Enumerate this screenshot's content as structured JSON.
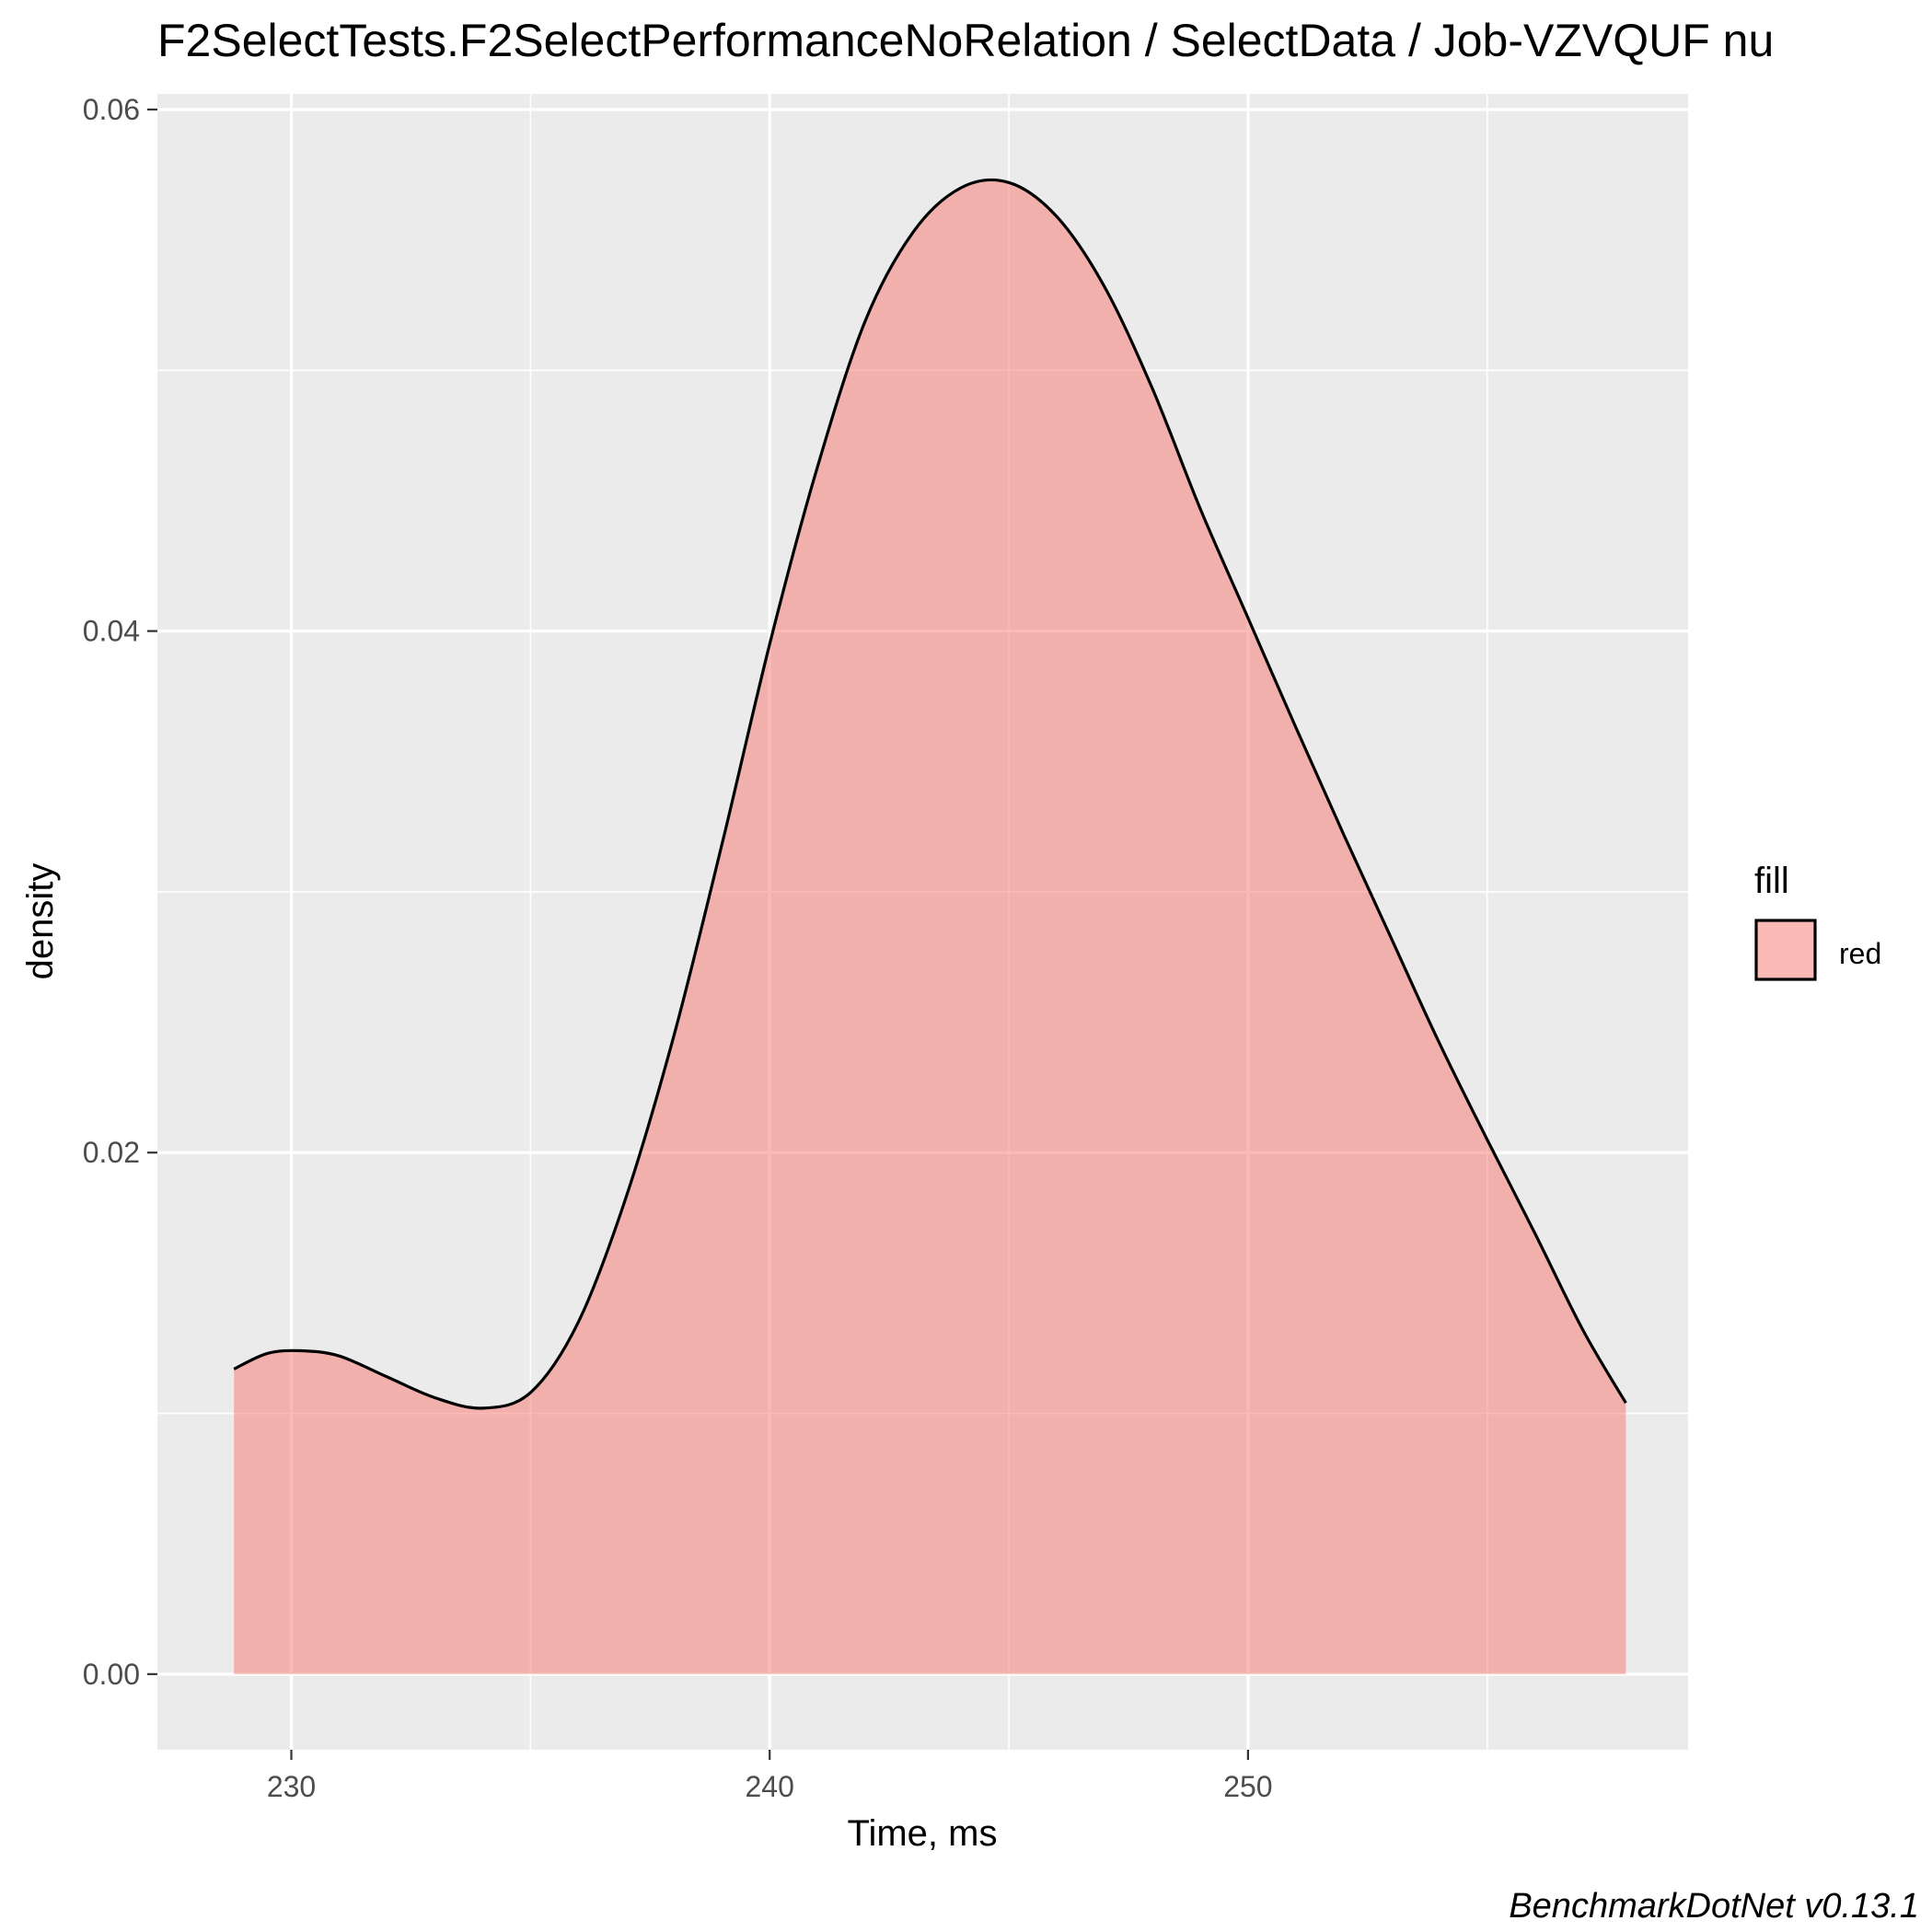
{
  "chart_data": {
    "type": "area",
    "title": "F2SelectTests.F2SelectPerformanceNoRelation / SelectData / Job-VZVQUF nu",
    "xlabel": "Time, ms",
    "ylabel": "density",
    "caption": "BenchmarkDotNet v0.13.1",
    "xlim": [
      227.2,
      259.2
    ],
    "ylim": [
      -0.0029,
      0.0606
    ],
    "x_ticks": [
      230,
      240,
      250
    ],
    "x_tick_labels": [
      "230",
      "240",
      "250"
    ],
    "y_ticks": [
      0.0,
      0.02,
      0.04,
      0.06
    ],
    "y_tick_labels": [
      "0.00",
      "0.02",
      "0.04",
      "0.06"
    ],
    "grid": true,
    "legend": {
      "title": "fill",
      "position": "right",
      "entries": [
        {
          "label": "red",
          "color": "#F8766D"
        }
      ]
    },
    "series": [
      {
        "x": [
          228.8,
          229.5,
          230.2,
          231.0,
          232.0,
          233.0,
          234.0,
          235.0,
          236.0,
          237.0,
          238.0,
          239.0,
          240.0,
          241.0,
          242.0,
          243.0,
          244.0,
          245.0,
          246.0,
          247.0,
          248.0,
          249.0,
          250.0,
          251.0,
          252.0,
          253.0,
          254.0,
          255.0,
          256.0,
          257.0,
          257.9
        ],
        "y": [
          0.0117,
          0.0123,
          0.0124,
          0.0122,
          0.0114,
          0.0106,
          0.0102,
          0.0108,
          0.0135,
          0.0183,
          0.0245,
          0.0318,
          0.0395,
          0.0463,
          0.0519,
          0.0553,
          0.057,
          0.0572,
          0.0559,
          0.0532,
          0.0493,
          0.0447,
          0.0405,
          0.0363,
          0.0322,
          0.0282,
          0.0242,
          0.0205,
          0.0169,
          0.0132,
          0.0104
        ]
      }
    ],
    "fill_color": "#F8766D",
    "fill_opacity": 0.5,
    "line_color": "#000000",
    "panel_color": "#EBEBEB",
    "grid_color": "#FFFFFF"
  }
}
